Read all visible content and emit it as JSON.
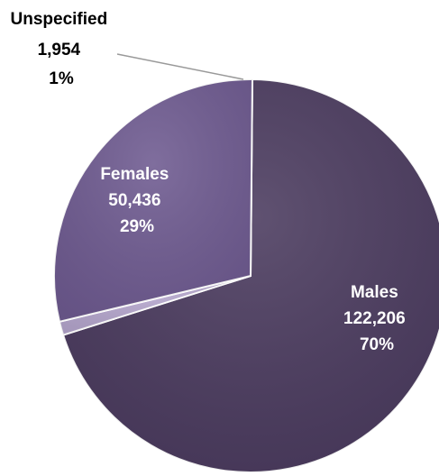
{
  "chart_data": {
    "type": "pie",
    "title": "",
    "slices": [
      {
        "name": "Males",
        "value": 122206,
        "value_label": "122,206",
        "percent_label": "70%",
        "color": "#4a3a5e"
      },
      {
        "name": "Unspecified",
        "value": 1954,
        "value_label": "1,954",
        "percent_label": "1%",
        "color": "#b3a4cb"
      },
      {
        "name": "Females",
        "value": 50436,
        "value_label": "50,436",
        "percent_label": "29%",
        "color": "#6e5a90"
      }
    ],
    "start": "12 o'clock",
    "direction": "clockwise",
    "legend": "none",
    "labels": {
      "males": "Males",
      "females": "Females",
      "unspecified": "Unspecified"
    }
  }
}
